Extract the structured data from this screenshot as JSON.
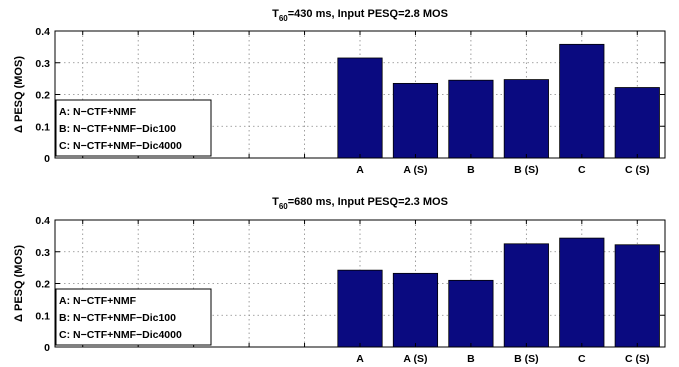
{
  "chart_data": [
    {
      "type": "bar",
      "title_main": "T",
      "title_sub": "60",
      "title_rest": "=430 ms, Input PESQ=2.8 MOS",
      "ylabel": "Δ PESQ (MOS)",
      "xlabel": "",
      "categories": [
        "A",
        "A (S)",
        "B",
        "B (S)",
        "C",
        "C (S)"
      ],
      "values": [
        0.315,
        0.235,
        0.245,
        0.247,
        0.358,
        0.222
      ],
      "ylim": [
        0,
        0.4
      ],
      "yticks": [
        "0",
        "0.1",
        "0.2",
        "0.3",
        "0.4"
      ],
      "grid": true,
      "legend_position": "left",
      "legend": [
        "A: N−CTF+NMF",
        "B: N−CTF+NMF−Dic100",
        "C: N−CTF+NMF−Dic4000"
      ],
      "bar_color": "#0a0a80"
    },
    {
      "type": "bar",
      "title_main": "T",
      "title_sub": "60",
      "title_rest": "=680 ms, Input PESQ=2.3 MOS",
      "ylabel": "Δ PESQ (MOS)",
      "xlabel": "",
      "categories": [
        "A",
        "A (S)",
        "B",
        "B (S)",
        "C",
        "C (S)"
      ],
      "values": [
        0.242,
        0.232,
        0.21,
        0.325,
        0.343,
        0.322
      ],
      "ylim": [
        0,
        0.4
      ],
      "yticks": [
        "0",
        "0.1",
        "0.2",
        "0.3",
        "0.4"
      ],
      "grid": true,
      "legend_position": "left",
      "legend": [
        "A: N−CTF+NMF",
        "B: N−CTF+NMF−Dic100",
        "C: N−CTF+NMF−Dic4000"
      ],
      "bar_color": "#0a0a80"
    }
  ]
}
